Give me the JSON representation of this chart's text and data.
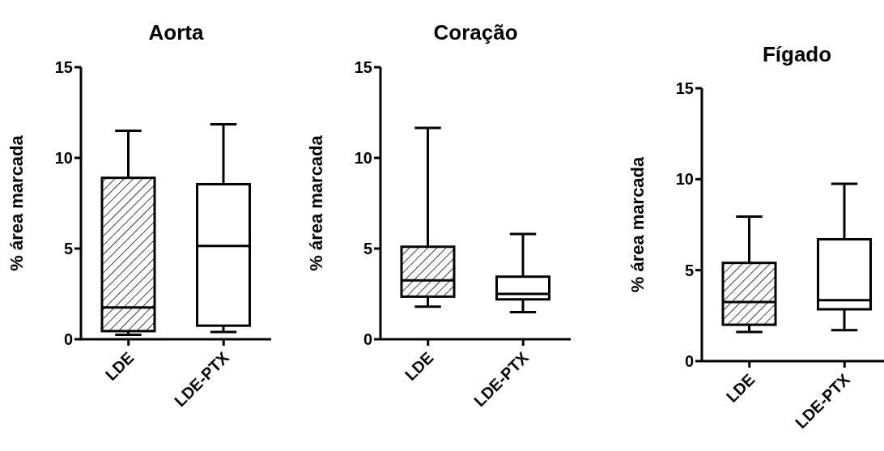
{
  "chart_data": [
    {
      "type": "box",
      "title": "Aorta",
      "ylabel": "% área marcada",
      "categories": [
        "LDE",
        "LDE-PTX"
      ],
      "colors": [
        "#000000",
        "#ffffff"
      ],
      "ylim": [
        0,
        15
      ],
      "yticks": [
        0,
        5,
        10,
        15
      ],
      "boxes": [
        {
          "low": 0.25,
          "q1": 0.45,
          "median": 1.75,
          "q3": 8.9,
          "high": 11.5
        },
        {
          "low": 0.4,
          "q1": 0.75,
          "median": 5.15,
          "q3": 8.55,
          "high": 11.85
        }
      ]
    },
    {
      "type": "box",
      "title": "Coração",
      "ylabel": "% área marcada",
      "categories": [
        "LDE",
        "LDE-PTX"
      ],
      "colors": [
        "#000000",
        "#ffffff"
      ],
      "ylim": [
        0,
        15
      ],
      "yticks": [
        0,
        5,
        10,
        15
      ],
      "boxes": [
        {
          "low": 1.8,
          "q1": 2.35,
          "median": 3.25,
          "q3": 5.1,
          "high": 11.65
        },
        {
          "low": 1.5,
          "q1": 2.2,
          "median": 2.5,
          "q3": 3.45,
          "high": 5.8
        }
      ]
    },
    {
      "type": "box",
      "title": "Fígado",
      "ylabel": "% área marcada",
      "categories": [
        "LDE",
        "LDE-PTX"
      ],
      "colors": [
        "#000000",
        "#ffffff"
      ],
      "ylim": [
        0,
        15
      ],
      "yticks": [
        0,
        5,
        10,
        15
      ],
      "boxes": [
        {
          "low": 1.6,
          "q1": 2.0,
          "median": 3.25,
          "q3": 5.4,
          "high": 7.95
        },
        {
          "low": 1.7,
          "q1": 2.85,
          "median": 3.35,
          "q3": 6.7,
          "high": 9.75
        }
      ]
    }
  ]
}
